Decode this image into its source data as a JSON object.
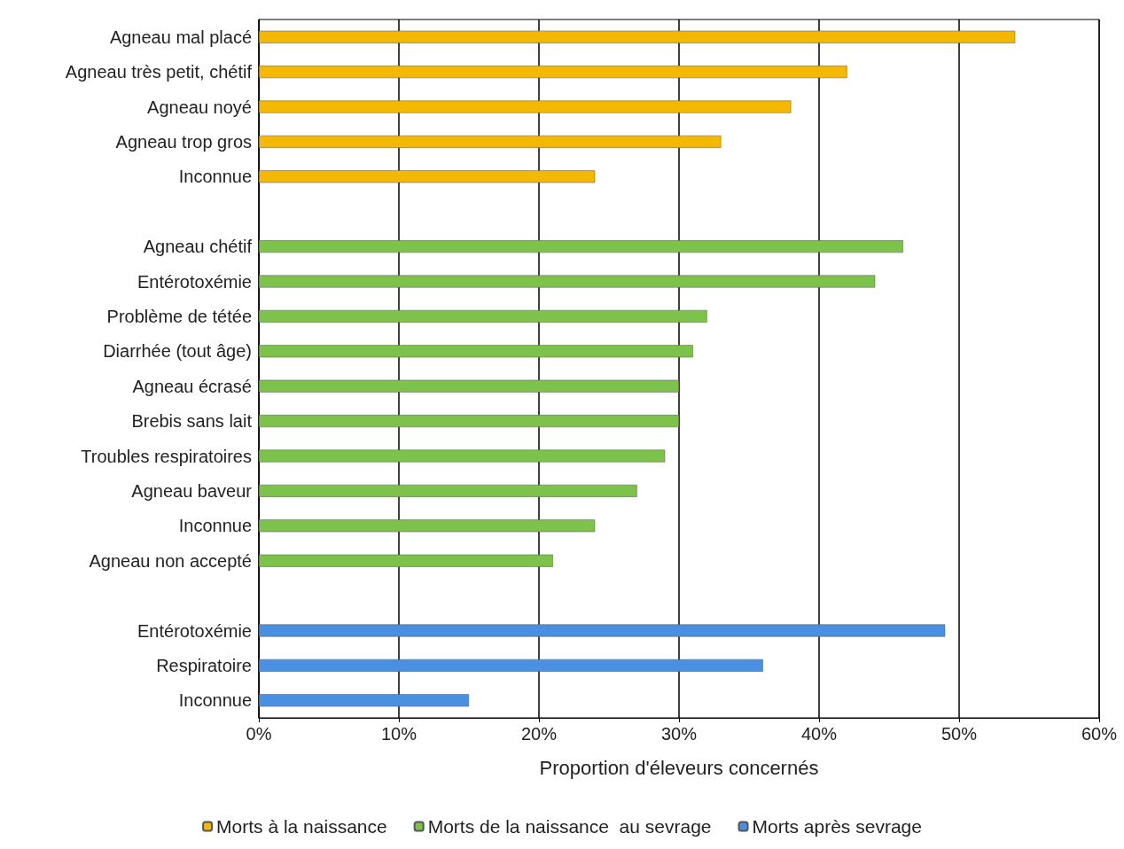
{
  "chart_data": {
    "type": "bar",
    "orientation": "horizontal",
    "xlabel": "Proportion d'éleveurs concernés",
    "categories": [
      "Agneau mal placé",
      "Agneau très petit, chétif",
      "Agneau noyé",
      "Agneau trop gros",
      "Inconnue",
      null,
      "Agneau chétif",
      "Entérotoxémie",
      "Problème de tétée",
      "Diarrhée (tout âge)",
      "Agneau écrasé",
      "Brebis sans lait",
      "Troubles respiratoires",
      "Agneau baveur",
      "Inconnue",
      "Agneau non accepté",
      null,
      "Entérotoxémie",
      "Respiratoire",
      "Inconnue"
    ],
    "series": [
      {
        "name": "Morts à la naissance",
        "color": "#f5b800",
        "values": [
          54,
          42,
          38,
          33,
          24,
          null,
          null,
          null,
          null,
          null,
          null,
          null,
          null,
          null,
          null,
          null,
          null,
          null,
          null,
          null
        ]
      },
      {
        "name": "Morts de la naissance  au sevrage",
        "color": "#7dc24b",
        "values": [
          null,
          null,
          null,
          null,
          null,
          null,
          46,
          44,
          32,
          31,
          30,
          30,
          29,
          27,
          24,
          21,
          null,
          null,
          null,
          null
        ]
      },
      {
        "name": "Morts après sevrage",
        "color": "#4a90e2",
        "values": [
          null,
          null,
          null,
          null,
          null,
          null,
          null,
          null,
          null,
          null,
          null,
          null,
          null,
          null,
          null,
          null,
          null,
          49,
          36,
          15
        ]
      }
    ],
    "xlim": [
      0,
      60
    ],
    "xticks": [
      {
        "value": 0,
        "label": "0%"
      },
      {
        "value": 10,
        "label": "10%"
      },
      {
        "value": 20,
        "label": "20%"
      },
      {
        "value": 30,
        "label": "30%"
      },
      {
        "value": 40,
        "label": "40%"
      },
      {
        "value": 50,
        "label": "50%"
      },
      {
        "value": 60,
        "label": "60%"
      }
    ],
    "grid": "x",
    "legend": "bottom"
  }
}
